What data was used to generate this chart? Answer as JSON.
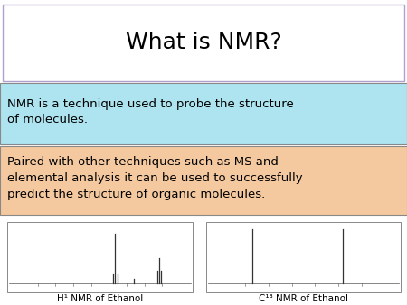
{
  "title": "What is NMR?",
  "title_fontsize": 18,
  "box1_text": "NMR is a technique used to probe the structure\nof molecules.",
  "box1_color": "#ADE4F0",
  "box2_text": "Paired with other techniques such as MS and\nelemental analysis it can be used to successfully\npredict the structure of organic molecules.",
  "box2_color": "#F5C9A0",
  "nmr1_label": "H¹ NMR of Ethanol",
  "nmr2_label": "C¹³ NMR of Ethanol",
  "bg_color": "#ffffff",
  "text_color": "#000000",
  "title_border_color": "#b0a0cc",
  "spec_border_color": "#888888",
  "label_fontsize": 7.5,
  "text_fontsize": 9.5
}
